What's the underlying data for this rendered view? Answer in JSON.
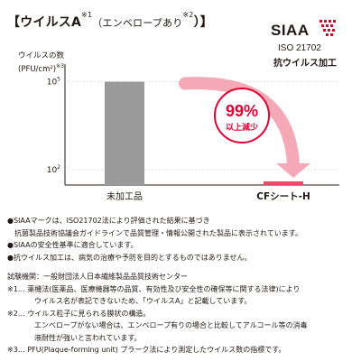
{
  "header": {
    "title_main": "【ウイルスA",
    "title_sup1": "※1",
    "title_paren_open": "（エンベロープあり",
    "title_sup2": "※2",
    "title_paren_close": "）】"
  },
  "logo": {
    "mark": "SIAA",
    "iso": "ISO 21702",
    "subtitle": "抗ウイルス加工",
    "color": "#c8102e"
  },
  "chart_data": {
    "type": "bar",
    "ylabel_line1": "ウイルスの数",
    "ylabel_line2": "(PFU/cm²)",
    "ylabel_note": "※3",
    "yscale": "log",
    "ylim": [
      30,
      300000
    ],
    "yticks": [
      {
        "value": 100000,
        "base": "10",
        "exp": "5"
      },
      {
        "value": 100,
        "base": "10",
        "exp": "2"
      }
    ],
    "categories": [
      "未加工品",
      "CFシート-H"
    ],
    "values": [
      100000,
      40
    ],
    "bar_colors": [
      "#9a9a9a",
      "#e8506a"
    ],
    "grid": true,
    "annotation": {
      "value": "99%",
      "text": "以上減少",
      "color": "#e60033"
    }
  },
  "notes": {
    "siaa_lines": [
      "●SIAAマークは、ISO21702法により評価された結果に基づき",
      "抗菌製品技術協議会ガイドラインで品質管理・情報公開された製品に表示されています。",
      "●SIAAの安全性基準に適合しています。",
      "●抗ウイルス加工は、病気の治療や予防を目的とするものではありません。"
    ],
    "test_org": "試験機関：一般財団法人日本繊維製品品質技術センター",
    "footnote1_lines": [
      "※1… 薬機法(医薬品、医療機器等の品質、有効性及び安全性の確保等に関する法律)により",
      "ウイルス名が表記できないため、「ウイルスA」と記載しています。"
    ],
    "footnote2_lines": [
      "※2… ウイルス粒子に見られる膜状の構造。",
      "エンベロープがない場合は、エンベロープ有りの場合と比較してアルコール等の消毒",
      "液耐性が強いと言われています。"
    ],
    "footnote3": "※3… PFU(Plaque-forming unit) プラーク法により測定したウイルス数の指標です。"
  }
}
